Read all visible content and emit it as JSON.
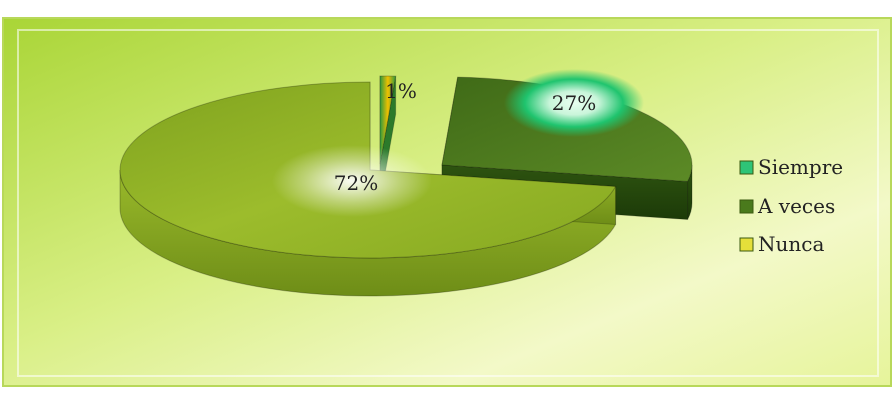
{
  "chart_data": {
    "type": "pie",
    "style": "3d-exploded",
    "categories": [
      "Siempre",
      "A veces",
      "Nunca"
    ],
    "values": [
      1,
      27,
      72
    ],
    "data_labels": [
      "1%",
      "27%",
      "72%"
    ],
    "colors": [
      "#1fb86a",
      "#4f7c1e",
      "#9bbb2a"
    ],
    "legend": {
      "position": "right",
      "entries": [
        "Siempre",
        "A veces",
        "Nunca"
      ]
    },
    "title": "",
    "background": "#d5ec7a"
  }
}
